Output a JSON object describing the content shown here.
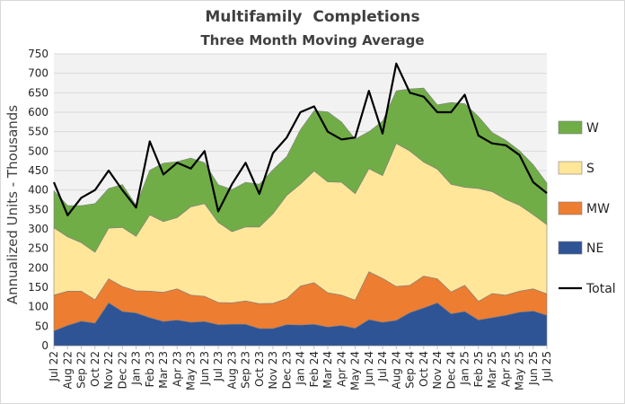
{
  "chart_data": {
    "type": "area",
    "title": "Multifamily  Completions",
    "subtitle": "Three Month Moving Average",
    "ylabel": "Annualized  Units  - Thousands",
    "xlabel": "",
    "ylim": [
      0,
      750
    ],
    "ytick_step": 50,
    "stacked": true,
    "grid": true,
    "legend_position": "right",
    "categories": [
      "Jul 22",
      "Aug 22",
      "Sep 22",
      "Oct 22",
      "Nov 22",
      "Dec 22",
      "Jan 23",
      "Feb 23",
      "Mar 23",
      "Apr 23",
      "May 23",
      "Jun 23",
      "Jul 23",
      "Aug 23",
      "Sep 23",
      "Oct 23",
      "Nov 23",
      "Dec 23",
      "Jan 24",
      "Feb 24",
      "Mar 24",
      "Apr 24",
      "May 24",
      "Jun 24",
      "Jul 24",
      "Aug 24",
      "Sep 24",
      "Oct 24",
      "Nov 24",
      "Dec 24",
      "Jan 25",
      "Feb 25",
      "Mar 25",
      "Apr 25",
      "May 25",
      "Jun 25",
      "Jul 25"
    ],
    "series": [
      {
        "name": "NE",
        "color": "#2e5496",
        "values": [
          38,
          52,
          63,
          58,
          110,
          88,
          84,
          72,
          62,
          66,
          60,
          62,
          54,
          55,
          55,
          44,
          44,
          54,
          53,
          55,
          48,
          52,
          45,
          67,
          60,
          65,
          85,
          97,
          110,
          82,
          88,
          66,
          72,
          78,
          86,
          89,
          78
        ]
      },
      {
        "name": "MW",
        "color": "#ed7d31",
        "values": [
          92,
          88,
          77,
          60,
          62,
          64,
          57,
          68,
          75,
          80,
          70,
          65,
          57,
          55,
          60,
          64,
          65,
          67,
          100,
          107,
          88,
          78,
          72,
          123,
          113,
          87,
          70,
          82,
          62,
          56,
          67,
          48,
          62,
          52,
          54,
          57,
          55
        ]
      },
      {
        "name": "S",
        "color": "#ffe699",
        "values": [
          173,
          140,
          125,
          122,
          130,
          152,
          140,
          196,
          182,
          183,
          227,
          238,
          206,
          183,
          190,
          197,
          230,
          265,
          262,
          287,
          285,
          290,
          274,
          265,
          264,
          368,
          345,
          293,
          282,
          277,
          252,
          290,
          262,
          246,
          221,
          191,
          178
        ]
      },
      {
        "name": "W",
        "color": "#70ad47",
        "values": [
          95,
          80,
          95,
          125,
          102,
          110,
          80,
          115,
          150,
          144,
          125,
          105,
          97,
          108,
          115,
          110,
          113,
          100,
          140,
          155,
          180,
          155,
          140,
          95,
          140,
          135,
          160,
          190,
          165,
          210,
          215,
          185,
          152,
          152,
          140,
          128,
          107
        ]
      }
    ],
    "total": {
      "name": "Total",
      "color": "#000000",
      "values": [
        420,
        335,
        380,
        400,
        450,
        400,
        355,
        525,
        440,
        470,
        455,
        500,
        345,
        415,
        470,
        390,
        495,
        535,
        600,
        615,
        550,
        530,
        535,
        655,
        545,
        725,
        650,
        640,
        600,
        600,
        645,
        540,
        520,
        515,
        490,
        420,
        392
      ]
    }
  }
}
